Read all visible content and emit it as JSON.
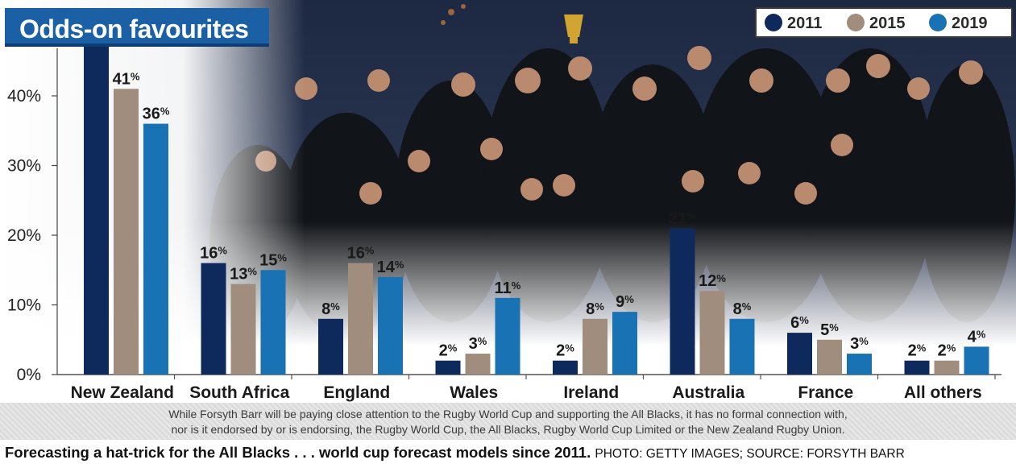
{
  "title": "Odds-on favourites",
  "colors": {
    "2011": "#0e2a5c",
    "2015": "#a08d7d",
    "2019": "#1872b3",
    "title_bg": "#1b5fa5"
  },
  "legend": [
    {
      "label": "2011",
      "color": "#0e2a5c"
    },
    {
      "label": "2015",
      "color": "#a08d7d"
    },
    {
      "label": "2019",
      "color": "#1872b3"
    }
  ],
  "chart_data": {
    "type": "bar",
    "title": "Odds-on favourites",
    "categories": [
      "New Zealand",
      "South Africa",
      "England",
      "Wales",
      "Ireland",
      "Australia",
      "France",
      "All others"
    ],
    "series": [
      {
        "name": "2011",
        "values": [
          48,
          16,
          8,
          2,
          2,
          21,
          6,
          2
        ]
      },
      {
        "name": "2015",
        "values": [
          41,
          13,
          16,
          3,
          8,
          12,
          5,
          2
        ]
      },
      {
        "name": "2019",
        "values": [
          36,
          15,
          14,
          11,
          9,
          8,
          3,
          4
        ]
      }
    ],
    "value_suffix": "%",
    "ylim": [
      0,
      50
    ],
    "yticks": [
      "0%",
      "10%",
      "20%",
      "30%",
      "40%"
    ],
    "legend_position": "top-right",
    "grid": false
  },
  "disclaimer": {
    "line1": "While Forsyth Barr will be paying close attention to the Rugby World Cup and supporting the All Blacks, it has no formal connection with,",
    "line2": "nor is it endorsed by or is endorsing, the Rugby World Cup, the All Blacks, Rugby World Cup Limited or the New Zealand Rugby Union."
  },
  "caption": {
    "headline": "Forecasting a hat-trick for the All Blacks . . . world cup forecast models since 2011.",
    "credit": "PHOTO: GETTY IMAGES; SOURCE: FORSYTH BARR"
  }
}
